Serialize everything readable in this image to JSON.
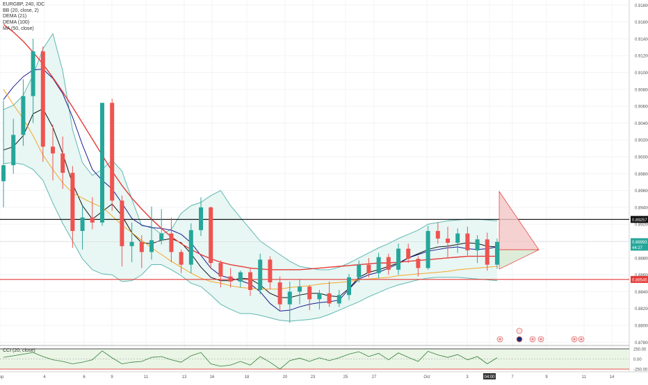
{
  "legend": {
    "symbol_line": "EURGBP, 240, IDC",
    "bb": "BB (20, close, 2)",
    "dema21": "DEMA (21)",
    "dema100": "DEMA (100)",
    "ma50": "MA (50, close)"
  },
  "cci_legend": "CCI (20, close)",
  "price_tags": {
    "resistance": "0.89257",
    "current": "0.88993",
    "countdown": "44:27",
    "support": "0.88545"
  },
  "cci_tags": {
    "upper": "250.00",
    "mid": "0.00",
    "lower": "-250.00"
  },
  "time_tag": "04:00",
  "colors": {
    "up": "#26a69a",
    "down": "#ef5350",
    "bb_line": "#5fb8b0",
    "bb_fill": "#e8f6f4",
    "dema21": "#111111",
    "dema100": "#1a1a8c",
    "ma50": "#f5a623",
    "red_ma": "#e53935",
    "resistance": "#000000",
    "support": "#e53935",
    "projection_up": "#f2c5c5",
    "projection_down": "#d5e8d0"
  },
  "event_icons": [
    "calendar-icon",
    "dividend-icon",
    "earnings-icon",
    "news-icon"
  ],
  "chart_data": {
    "type": "candlestick",
    "ylim": [
      0.8777,
      0.9186
    ],
    "y_ticks": [
      "0.91800",
      "0.91600",
      "0.91400",
      "0.91200",
      "0.91000",
      "0.90800",
      "0.90600",
      "0.90400",
      "0.90200",
      "0.90000",
      "0.89800",
      "0.89600",
      "0.89400",
      "0.89200",
      "0.89000",
      "0.88800",
      "0.88600",
      "0.88400",
      "0.88200",
      "0.88000",
      "0.87800"
    ],
    "x_ticks": [
      "Sep",
      "4",
      "6",
      "9",
      "11",
      "13",
      "16",
      "18",
      "20",
      "23",
      "25",
      "27",
      "Oct",
      "3",
      "04:00",
      "7",
      "9",
      "11",
      "14"
    ],
    "candles": [
      {
        "o": 0.8971,
        "h": 0.9067,
        "l": 0.894,
        "c": 0.899
      },
      {
        "o": 0.899,
        "h": 0.9045,
        "l": 0.898,
        "c": 0.9026
      },
      {
        "o": 0.9026,
        "h": 0.9092,
        "l": 0.9013,
        "c": 0.9072
      },
      {
        "o": 0.9072,
        "h": 0.914,
        "l": 0.904,
        "c": 0.9125
      },
      {
        "o": 0.9125,
        "h": 0.9131,
        "l": 0.8994,
        "c": 0.9012
      },
      {
        "o": 0.9012,
        "h": 0.9038,
        "l": 0.8972,
        "c": 0.9004
      },
      {
        "o": 0.9004,
        "h": 0.9024,
        "l": 0.8962,
        "c": 0.8981
      },
      {
        "o": 0.8981,
        "h": 0.8989,
        "l": 0.8892,
        "c": 0.8912
      },
      {
        "o": 0.8912,
        "h": 0.8942,
        "l": 0.889,
        "c": 0.8928
      },
      {
        "o": 0.8928,
        "h": 0.8952,
        "l": 0.8914,
        "c": 0.8922
      },
      {
        "o": 0.8922,
        "h": 0.9064,
        "l": 0.8918,
        "c": 0.9064
      },
      {
        "o": 0.9064,
        "h": 0.9069,
        "l": 0.8936,
        "c": 0.8948
      },
      {
        "o": 0.8948,
        "h": 0.8954,
        "l": 0.887,
        "c": 0.8894
      },
      {
        "o": 0.8894,
        "h": 0.8922,
        "l": 0.8875,
        "c": 0.8899
      },
      {
        "o": 0.8899,
        "h": 0.8907,
        "l": 0.8868,
        "c": 0.8887
      },
      {
        "o": 0.8887,
        "h": 0.8941,
        "l": 0.8878,
        "c": 0.8901
      },
      {
        "o": 0.8901,
        "h": 0.8938,
        "l": 0.8896,
        "c": 0.8909
      },
      {
        "o": 0.8909,
        "h": 0.8928,
        "l": 0.8875,
        "c": 0.8887
      },
      {
        "o": 0.8887,
        "h": 0.889,
        "l": 0.8862,
        "c": 0.8872
      },
      {
        "o": 0.8872,
        "h": 0.8921,
        "l": 0.8862,
        "c": 0.8913
      },
      {
        "o": 0.8913,
        "h": 0.8952,
        "l": 0.8906,
        "c": 0.894
      },
      {
        "o": 0.894,
        "h": 0.8941,
        "l": 0.8867,
        "c": 0.8874
      },
      {
        "o": 0.8874,
        "h": 0.8877,
        "l": 0.8845,
        "c": 0.8858
      },
      {
        "o": 0.8858,
        "h": 0.8868,
        "l": 0.8845,
        "c": 0.8852
      },
      {
        "o": 0.8852,
        "h": 0.8865,
        "l": 0.8845,
        "c": 0.8863
      },
      {
        "o": 0.8863,
        "h": 0.8868,
        "l": 0.8835,
        "c": 0.8842
      },
      {
        "o": 0.8842,
        "h": 0.8885,
        "l": 0.8837,
        "c": 0.8878
      },
      {
        "o": 0.8878,
        "h": 0.8882,
        "l": 0.8843,
        "c": 0.8851
      },
      {
        "o": 0.8851,
        "h": 0.8858,
        "l": 0.8818,
        "c": 0.8825
      },
      {
        "o": 0.8825,
        "h": 0.8852,
        "l": 0.8803,
        "c": 0.884
      },
      {
        "o": 0.884,
        "h": 0.8854,
        "l": 0.8825,
        "c": 0.8846
      },
      {
        "o": 0.8846,
        "h": 0.8848,
        "l": 0.8818,
        "c": 0.8831
      },
      {
        "o": 0.8831,
        "h": 0.8842,
        "l": 0.8819,
        "c": 0.8838
      },
      {
        "o": 0.8838,
        "h": 0.8852,
        "l": 0.8822,
        "c": 0.8826
      },
      {
        "o": 0.8826,
        "h": 0.8842,
        "l": 0.8822,
        "c": 0.8836
      },
      {
        "o": 0.8836,
        "h": 0.8861,
        "l": 0.883,
        "c": 0.8857
      },
      {
        "o": 0.8857,
        "h": 0.8877,
        "l": 0.8851,
        "c": 0.8872
      },
      {
        "o": 0.8872,
        "h": 0.888,
        "l": 0.8857,
        "c": 0.8862
      },
      {
        "o": 0.8862,
        "h": 0.8886,
        "l": 0.8856,
        "c": 0.8881
      },
      {
        "o": 0.8881,
        "h": 0.8885,
        "l": 0.886,
        "c": 0.8866
      },
      {
        "o": 0.8866,
        "h": 0.8897,
        "l": 0.886,
        "c": 0.8891
      },
      {
        "o": 0.8891,
        "h": 0.8897,
        "l": 0.8874,
        "c": 0.8879
      },
      {
        "o": 0.8879,
        "h": 0.8882,
        "l": 0.8858,
        "c": 0.8868
      },
      {
        "o": 0.8868,
        "h": 0.8918,
        "l": 0.8866,
        "c": 0.8912
      },
      {
        "o": 0.8912,
        "h": 0.8922,
        "l": 0.8897,
        "c": 0.8903
      },
      {
        "o": 0.8903,
        "h": 0.8917,
        "l": 0.888,
        "c": 0.8898
      },
      {
        "o": 0.8898,
        "h": 0.8915,
        "l": 0.8886,
        "c": 0.8909
      },
      {
        "o": 0.8909,
        "h": 0.8917,
        "l": 0.8883,
        "c": 0.8889
      },
      {
        "o": 0.8889,
        "h": 0.8907,
        "l": 0.8874,
        "c": 0.8902
      },
      {
        "o": 0.8902,
        "h": 0.891,
        "l": 0.8865,
        "c": 0.8872
      },
      {
        "o": 0.8872,
        "h": 0.8903,
        "l": 0.8867,
        "c": 0.8899
      }
    ],
    "series": [
      {
        "name": "BB (20, close, 2)",
        "upper": [
          0.9056,
          0.9061,
          0.9073,
          0.9097,
          0.9128,
          0.9146,
          0.9102,
          0.9032,
          0.8993,
          0.8978,
          0.8985,
          0.8996,
          0.8983,
          0.895,
          0.8918,
          0.8917,
          0.8908,
          0.8914,
          0.8933,
          0.8942,
          0.8946,
          0.8954,
          0.896,
          0.8942,
          0.8928,
          0.8914,
          0.89,
          0.8892,
          0.8884,
          0.8876,
          0.887,
          0.8868,
          0.8866,
          0.8866,
          0.8869,
          0.8874,
          0.888,
          0.8886,
          0.8892,
          0.8897,
          0.8903,
          0.8908,
          0.8913,
          0.892,
          0.8922,
          0.8924,
          0.8925,
          0.8926,
          0.8926,
          0.8925,
          0.8924
        ],
        "lower": [
          0.8992,
          0.8993,
          0.8991,
          0.8985,
          0.8972,
          0.8945,
          0.8921,
          0.89,
          0.8879,
          0.8866,
          0.8861,
          0.886,
          0.8852,
          0.8853,
          0.886,
          0.8872,
          0.8872,
          0.8866,
          0.8859,
          0.885,
          0.8846,
          0.8836,
          0.8825,
          0.8819,
          0.8814,
          0.8814,
          0.8812,
          0.8809,
          0.8806,
          0.8805,
          0.8806,
          0.8807,
          0.8809,
          0.8813,
          0.8818,
          0.8823,
          0.8828,
          0.8834,
          0.8839,
          0.8844,
          0.8848,
          0.8851,
          0.8854,
          0.8856,
          0.8857,
          0.8857,
          0.8857,
          0.8856,
          0.8855,
          0.8854,
          0.8853
        ]
      },
      {
        "name": "DEMA (21)",
        "values": [
          0.9008,
          0.9012,
          0.9025,
          0.9051,
          0.9057,
          0.9035,
          0.9004,
          0.8968,
          0.8942,
          0.8926,
          0.8935,
          0.8944,
          0.893,
          0.891,
          0.8898,
          0.8897,
          0.8901,
          0.8903,
          0.8898,
          0.8885,
          0.8869,
          0.8857,
          0.8853,
          0.8853,
          0.8856,
          0.8855,
          0.8848,
          0.8838,
          0.8833,
          0.8833,
          0.8836,
          0.8838,
          0.8838,
          0.8835,
          0.8834,
          0.8844,
          0.8857,
          0.8863,
          0.8866,
          0.887,
          0.8874,
          0.888,
          0.8885,
          0.889,
          0.8893,
          0.8894,
          0.8896,
          0.8898,
          0.8897,
          0.8894,
          0.8893
        ]
      },
      {
        "name": "DEMA (100)",
        "values": [
          0.9068,
          0.9083,
          0.9095,
          0.9103,
          0.9104,
          0.9093,
          0.9075,
          0.9047,
          0.9014,
          0.8985,
          0.8972,
          0.8962,
          0.8945,
          0.8927,
          0.8919,
          0.8916,
          0.8915,
          0.8913,
          0.8908,
          0.8898,
          0.8883,
          0.8868,
          0.8859,
          0.8856,
          0.8853,
          0.8849,
          0.884,
          0.8826,
          0.8817,
          0.8818,
          0.8822,
          0.8825,
          0.8827,
          0.8828,
          0.883,
          0.8843,
          0.8855,
          0.886,
          0.8863,
          0.8868,
          0.8873,
          0.888,
          0.8884,
          0.8888,
          0.889,
          0.8892,
          0.8893,
          0.8891,
          0.889,
          0.8891,
          0.8893
        ]
      },
      {
        "name": "MA (50, close)",
        "values": [
          0.908,
          0.9062,
          0.9045,
          0.9025,
          0.9002,
          0.8985,
          0.8969,
          0.8957,
          0.8951,
          0.8945,
          0.894,
          0.893,
          0.8919,
          0.891,
          0.8901,
          0.8892,
          0.8884,
          0.8876,
          0.8869,
          0.8862,
          0.8856,
          0.8852,
          0.885,
          0.8847,
          0.8845,
          0.8844,
          0.8843,
          0.8843,
          0.8843,
          0.8845,
          0.8846,
          0.8847,
          0.8849,
          0.885,
          0.8851,
          0.8852,
          0.8854,
          0.8855,
          0.8856,
          0.8857,
          0.8859,
          0.886,
          0.8861,
          0.8862,
          0.8863,
          0.8864,
          0.8866,
          0.8867,
          0.8868,
          0.8869,
          0.887
        ]
      },
      {
        "name": "",
        "values": [
          0.9157,
          0.9148,
          0.9137,
          0.9124,
          0.911,
          0.9094,
          0.9077,
          0.9059,
          0.904,
          0.9021,
          0.9002,
          0.8983,
          0.8966,
          0.8951,
          0.8938,
          0.8926,
          0.8915,
          0.8905,
          0.8897,
          0.889,
          0.8884,
          0.8879,
          0.8875,
          0.8872,
          0.887,
          0.8868,
          0.8867,
          0.8866,
          0.8866,
          0.8866,
          0.8866,
          0.8867,
          0.8868,
          0.8869,
          0.887,
          0.8871,
          0.8872,
          0.8873,
          0.8874,
          0.8874,
          0.8875,
          0.8876,
          0.8877,
          0.8878,
          0.8879,
          0.888,
          0.8881,
          0.8882,
          0.8882,
          0.8882,
          0.8882
        ]
      }
    ],
    "levels": {
      "resistance": 0.89257,
      "current": 0.88993,
      "support": 0.88545
    },
    "cci": {
      "ylim": [
        -300,
        300
      ],
      "values": [
        40,
        80,
        120,
        160,
        60,
        -20,
        -60,
        -120,
        -80,
        -20,
        200,
        30,
        -120,
        -80,
        -60,
        40,
        60,
        -20,
        -80,
        80,
        160,
        -120,
        -180,
        -150,
        -60,
        -150,
        60,
        -80,
        -250,
        -40,
        20,
        -60,
        30,
        -40,
        30,
        120,
        180,
        60,
        140,
        -20,
        150,
        40,
        -60,
        190,
        100,
        40,
        110,
        -20,
        60,
        -120,
        30
      ]
    }
  }
}
